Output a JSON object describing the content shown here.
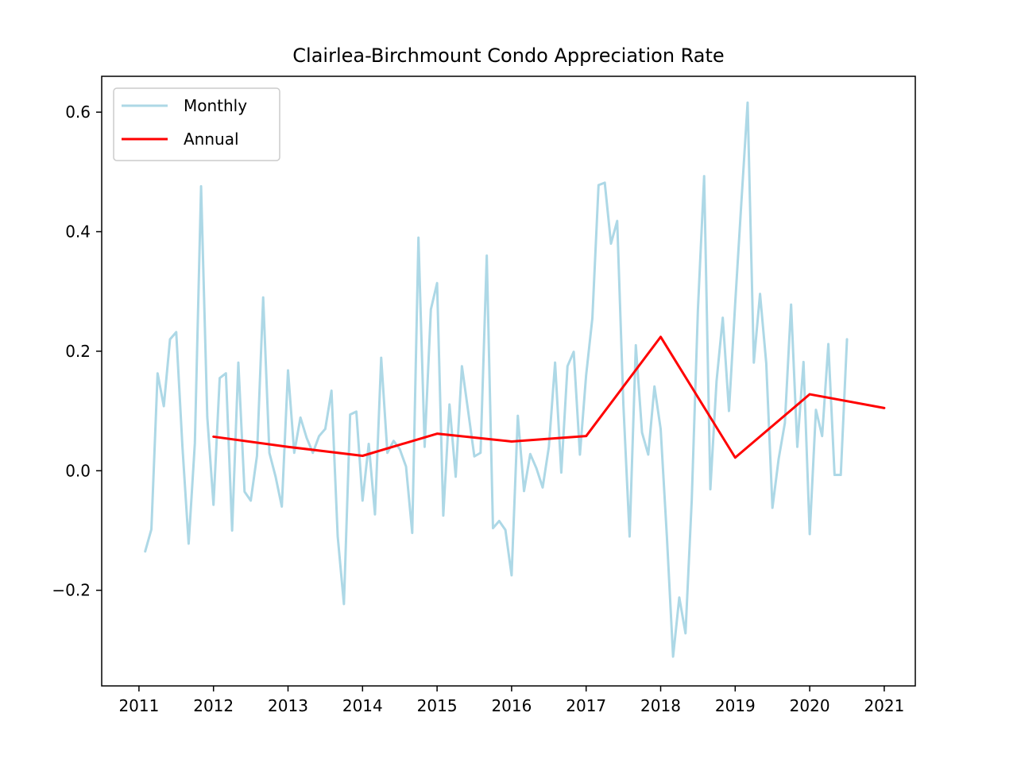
{
  "chart_data": {
    "type": "line",
    "title": "Clairlea-Birchmount Condo Appreciation Rate",
    "xlabel": "",
    "ylabel": "",
    "x_axis": "date",
    "xlim": [
      "2010-07-01",
      "2021-06-01"
    ],
    "ylim": [
      -0.36,
      0.66
    ],
    "x_ticks": [
      "2011",
      "2012",
      "2013",
      "2014",
      "2015",
      "2016",
      "2017",
      "2018",
      "2019",
      "2020",
      "2021"
    ],
    "y_ticks": [
      -0.2,
      0.0,
      0.2,
      0.4,
      0.6
    ],
    "y_tick_labels": [
      "−0.2",
      "0.0",
      "0.2",
      "0.4",
      "0.6"
    ],
    "grid": false,
    "legend": {
      "position": "upper-left"
    },
    "series": [
      {
        "name": "Monthly",
        "color": "#add8e6",
        "points": [
          [
            "2011-02",
            -0.135
          ],
          [
            "2011-03",
            -0.098
          ],
          [
            "2011-04",
            0.163
          ],
          [
            "2011-05",
            0.108
          ],
          [
            "2011-06",
            0.22
          ],
          [
            "2011-07",
            0.232
          ],
          [
            "2011-08",
            0.04
          ],
          [
            "2011-09",
            -0.122
          ],
          [
            "2011-10",
            0.046
          ],
          [
            "2011-11",
            0.476
          ],
          [
            "2011-12",
            0.09
          ],
          [
            "2012-01",
            -0.057
          ],
          [
            "2012-02",
            0.155
          ],
          [
            "2012-03",
            0.163
          ],
          [
            "2012-04",
            -0.1
          ],
          [
            "2012-05",
            0.181
          ],
          [
            "2012-06",
            -0.035
          ],
          [
            "2012-07",
            -0.05
          ],
          [
            "2012-08",
            0.025
          ],
          [
            "2012-09",
            0.29
          ],
          [
            "2012-10",
            0.03
          ],
          [
            "2012-11",
            -0.01
          ],
          [
            "2012-12",
            -0.06
          ],
          [
            "2013-01",
            0.168
          ],
          [
            "2013-02",
            0.03
          ],
          [
            "2013-03",
            0.089
          ],
          [
            "2013-04",
            0.055
          ],
          [
            "2013-05",
            0.03
          ],
          [
            "2013-06",
            0.058
          ],
          [
            "2013-07",
            0.07
          ],
          [
            "2013-08",
            0.134
          ],
          [
            "2013-09",
            -0.11
          ],
          [
            "2013-10",
            -0.223
          ],
          [
            "2013-11",
            0.094
          ],
          [
            "2013-12",
            0.099
          ],
          [
            "2014-01",
            -0.05
          ],
          [
            "2014-02",
            0.045
          ],
          [
            "2014-03",
            -0.073
          ],
          [
            "2014-04",
            0.189
          ],
          [
            "2014-05",
            0.03
          ],
          [
            "2014-06",
            0.05
          ],
          [
            "2014-07",
            0.036
          ],
          [
            "2014-08",
            0.007
          ],
          [
            "2014-09",
            -0.104
          ],
          [
            "2014-10",
            0.39
          ],
          [
            "2014-11",
            0.04
          ],
          [
            "2014-12",
            0.27
          ],
          [
            "2015-01",
            0.314
          ],
          [
            "2015-02",
            -0.075
          ],
          [
            "2015-03",
            0.111
          ],
          [
            "2015-04",
            -0.01
          ],
          [
            "2015-05",
            0.175
          ],
          [
            "2015-06",
            0.1
          ],
          [
            "2015-07",
            0.024
          ],
          [
            "2015-08",
            0.03
          ],
          [
            "2015-09",
            0.36
          ],
          [
            "2015-10",
            -0.096
          ],
          [
            "2015-11",
            -0.084
          ],
          [
            "2015-12",
            -0.099
          ],
          [
            "2016-01",
            -0.175
          ],
          [
            "2016-02",
            0.092
          ],
          [
            "2016-03",
            -0.034
          ],
          [
            "2016-04",
            0.028
          ],
          [
            "2016-05",
            0.004
          ],
          [
            "2016-06",
            -0.028
          ],
          [
            "2016-07",
            0.04
          ],
          [
            "2016-08",
            0.181
          ],
          [
            "2016-09",
            -0.003
          ],
          [
            "2016-10",
            0.175
          ],
          [
            "2016-11",
            0.199
          ],
          [
            "2016-12",
            0.027
          ],
          [
            "2017-01",
            0.16
          ],
          [
            "2017-02",
            0.255
          ],
          [
            "2017-03",
            0.478
          ],
          [
            "2017-04",
            0.482
          ],
          [
            "2017-05",
            0.38
          ],
          [
            "2017-06",
            0.418
          ],
          [
            "2017-07",
            0.11
          ],
          [
            "2017-08",
            -0.11
          ],
          [
            "2017-09",
            0.21
          ],
          [
            "2017-10",
            0.064
          ],
          [
            "2017-11",
            0.027
          ],
          [
            "2017-12",
            0.141
          ],
          [
            "2018-01",
            0.07
          ],
          [
            "2018-02",
            -0.11
          ],
          [
            "2018-03",
            -0.311
          ],
          [
            "2018-04",
            -0.212
          ],
          [
            "2018-05",
            -0.272
          ],
          [
            "2018-06",
            -0.05
          ],
          [
            "2018-07",
            0.27
          ],
          [
            "2018-08",
            0.493
          ],
          [
            "2018-09",
            -0.031
          ],
          [
            "2018-10",
            0.15
          ],
          [
            "2018-11",
            0.256
          ],
          [
            "2018-12",
            0.1
          ],
          [
            "2019-01",
            0.28
          ],
          [
            "2019-02",
            0.45
          ],
          [
            "2019-03",
            0.616
          ],
          [
            "2019-04",
            0.181
          ],
          [
            "2019-05",
            0.296
          ],
          [
            "2019-06",
            0.18
          ],
          [
            "2019-07",
            -0.062
          ],
          [
            "2019-08",
            0.02
          ],
          [
            "2019-09",
            0.08
          ],
          [
            "2019-10",
            0.278
          ],
          [
            "2019-11",
            0.04
          ],
          [
            "2019-12",
            0.182
          ],
          [
            "2020-01",
            -0.106
          ],
          [
            "2020-02",
            0.102
          ],
          [
            "2020-03",
            0.058
          ],
          [
            "2020-04",
            0.212
          ],
          [
            "2020-05",
            -0.007
          ],
          [
            "2020-06",
            -0.007
          ],
          [
            "2020-07",
            0.22
          ]
        ]
      },
      {
        "name": "Annual",
        "color": "#ff0000",
        "points": [
          [
            "2012-01",
            0.057
          ],
          [
            "2013-01",
            0.04
          ],
          [
            "2014-01",
            0.025
          ],
          [
            "2015-01",
            0.062
          ],
          [
            "2016-01",
            0.049
          ],
          [
            "2017-01",
            0.058
          ],
          [
            "2018-01",
            0.224
          ],
          [
            "2019-01",
            0.022
          ],
          [
            "2020-01",
            0.128
          ],
          [
            "2021-01",
            0.105
          ]
        ]
      }
    ]
  }
}
